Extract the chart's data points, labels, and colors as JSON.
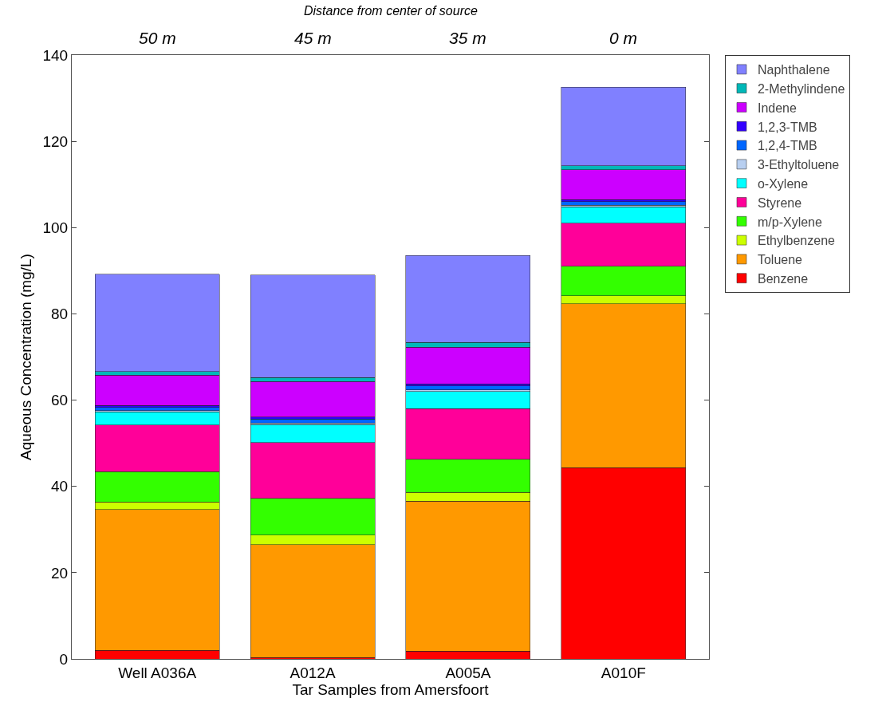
{
  "chart_data": {
    "type": "bar",
    "stacked": true,
    "xlabel": "Tar Samples from Amersfoort",
    "ylabel": "Aqueous Concentration (mg/L)",
    "x2label": "Distance from center of source",
    "categories": [
      "Well A036A",
      "A012A",
      "A005A",
      "A010F"
    ],
    "ylim": [
      0,
      140
    ],
    "yticks": [
      0,
      20,
      40,
      60,
      80,
      100,
      120,
      140
    ],
    "grid": false,
    "legend": "top right",
    "annotations": [
      "50 m",
      "45 m",
      "35 m",
      "0 m"
    ],
    "series": [
      {
        "name": "Benzene",
        "color": "#ff0000",
        "values": [
          2.0,
          0.3,
          1.8,
          44.3
        ]
      },
      {
        "name": "Toluene",
        "color": "#ff9900",
        "values": [
          32.6,
          26.2,
          34.8,
          38.0
        ]
      },
      {
        "name": "Ethylbenzene",
        "color": "#ccff00",
        "values": [
          1.8,
          2.2,
          2.0,
          1.9
        ]
      },
      {
        "name": "m/p-Xylene",
        "color": "#33ff00",
        "values": [
          7.0,
          8.5,
          7.7,
          6.8
        ]
      },
      {
        "name": "Styrene",
        "color": "#ff0099",
        "values": [
          10.8,
          13.0,
          11.7,
          10.0
        ]
      },
      {
        "name": "o-Xylene",
        "color": "#00ffff",
        "values": [
          3.1,
          4.1,
          4.0,
          3.8
        ]
      },
      {
        "name": "3-Ethyltoluene",
        "color": "#b8cff0",
        "values": [
          0.3,
          0.4,
          0.4,
          0.4
        ]
      },
      {
        "name": "1,2,4-TMB",
        "color": "#0066ff",
        "values": [
          0.7,
          0.9,
          0.9,
          0.8
        ]
      },
      {
        "name": "1,2,3-TMB",
        "color": "#3300ff",
        "values": [
          0.5,
          0.5,
          0.5,
          0.5
        ]
      },
      {
        "name": "Indene",
        "color": "#cc00ff",
        "values": [
          7.0,
          8.2,
          8.5,
          6.9
        ]
      },
      {
        "name": "2-Methylindene",
        "color": "#00b8b8",
        "values": [
          0.8,
          0.9,
          1.1,
          0.9
        ]
      },
      {
        "name": "Naphthalene",
        "color": "#8080ff",
        "values": [
          22.6,
          23.8,
          20.1,
          18.3
        ]
      }
    ]
  }
}
